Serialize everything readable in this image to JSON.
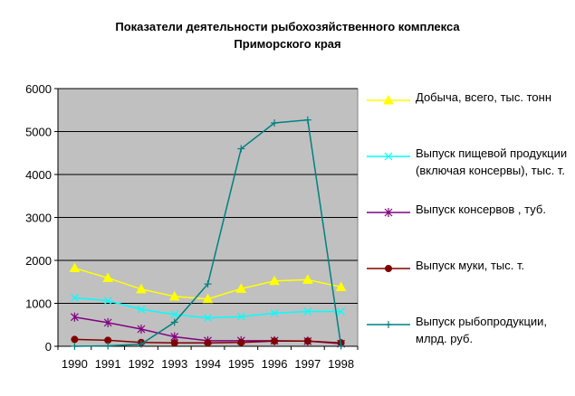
{
  "title": {
    "line1": "Показатели деятельности рыбохозяйственного комплекса",
    "line2": "Приморского края"
  },
  "chart_data": {
    "type": "line",
    "title": "Показатели деятельности рыбохозяйственного комплекса Приморского края",
    "x": [
      "1990",
      "1991",
      "1992",
      "1993",
      "1994",
      "1995",
      "1996",
      "1997",
      "1998"
    ],
    "ylim": [
      0,
      6000
    ],
    "yticks": [
      "0",
      "1000",
      "2000",
      "3000",
      "4000",
      "5000",
      "6000"
    ],
    "grid": true,
    "legend_position": "right",
    "plot_background": "#c0c0c0",
    "series": [
      {
        "name": "Добыча, всего, тыс. тонн",
        "color": "#ffff00",
        "marker": "triangle",
        "values": [
          1820,
          1590,
          1330,
          1160,
          1100,
          1340,
          1520,
          1550,
          1380
        ]
      },
      {
        "name": "Выпуск пищевой продукции (включая консервы), тыс. т.",
        "color": "#00ffff",
        "marker": "x",
        "values": [
          1130,
          1060,
          860,
          740,
          660,
          690,
          770,
          810,
          810
        ]
      },
      {
        "name": "Выпуск консервов , туб.",
        "color": "#800080",
        "marker": "star",
        "values": [
          680,
          550,
          400,
          220,
          130,
          130,
          130,
          120,
          60
        ]
      },
      {
        "name": "Выпуск муки, тыс. т.",
        "color": "#800000",
        "marker": "circle",
        "values": [
          160,
          140,
          90,
          80,
          80,
          90,
          120,
          120,
          80
        ]
      },
      {
        "name": "Выпуск рыбопродукции, млрд. руб.",
        "color": "#008080",
        "marker": "plus",
        "values": [
          0,
          10,
          50,
          560,
          1450,
          4600,
          5200,
          5270,
          10
        ]
      }
    ]
  }
}
